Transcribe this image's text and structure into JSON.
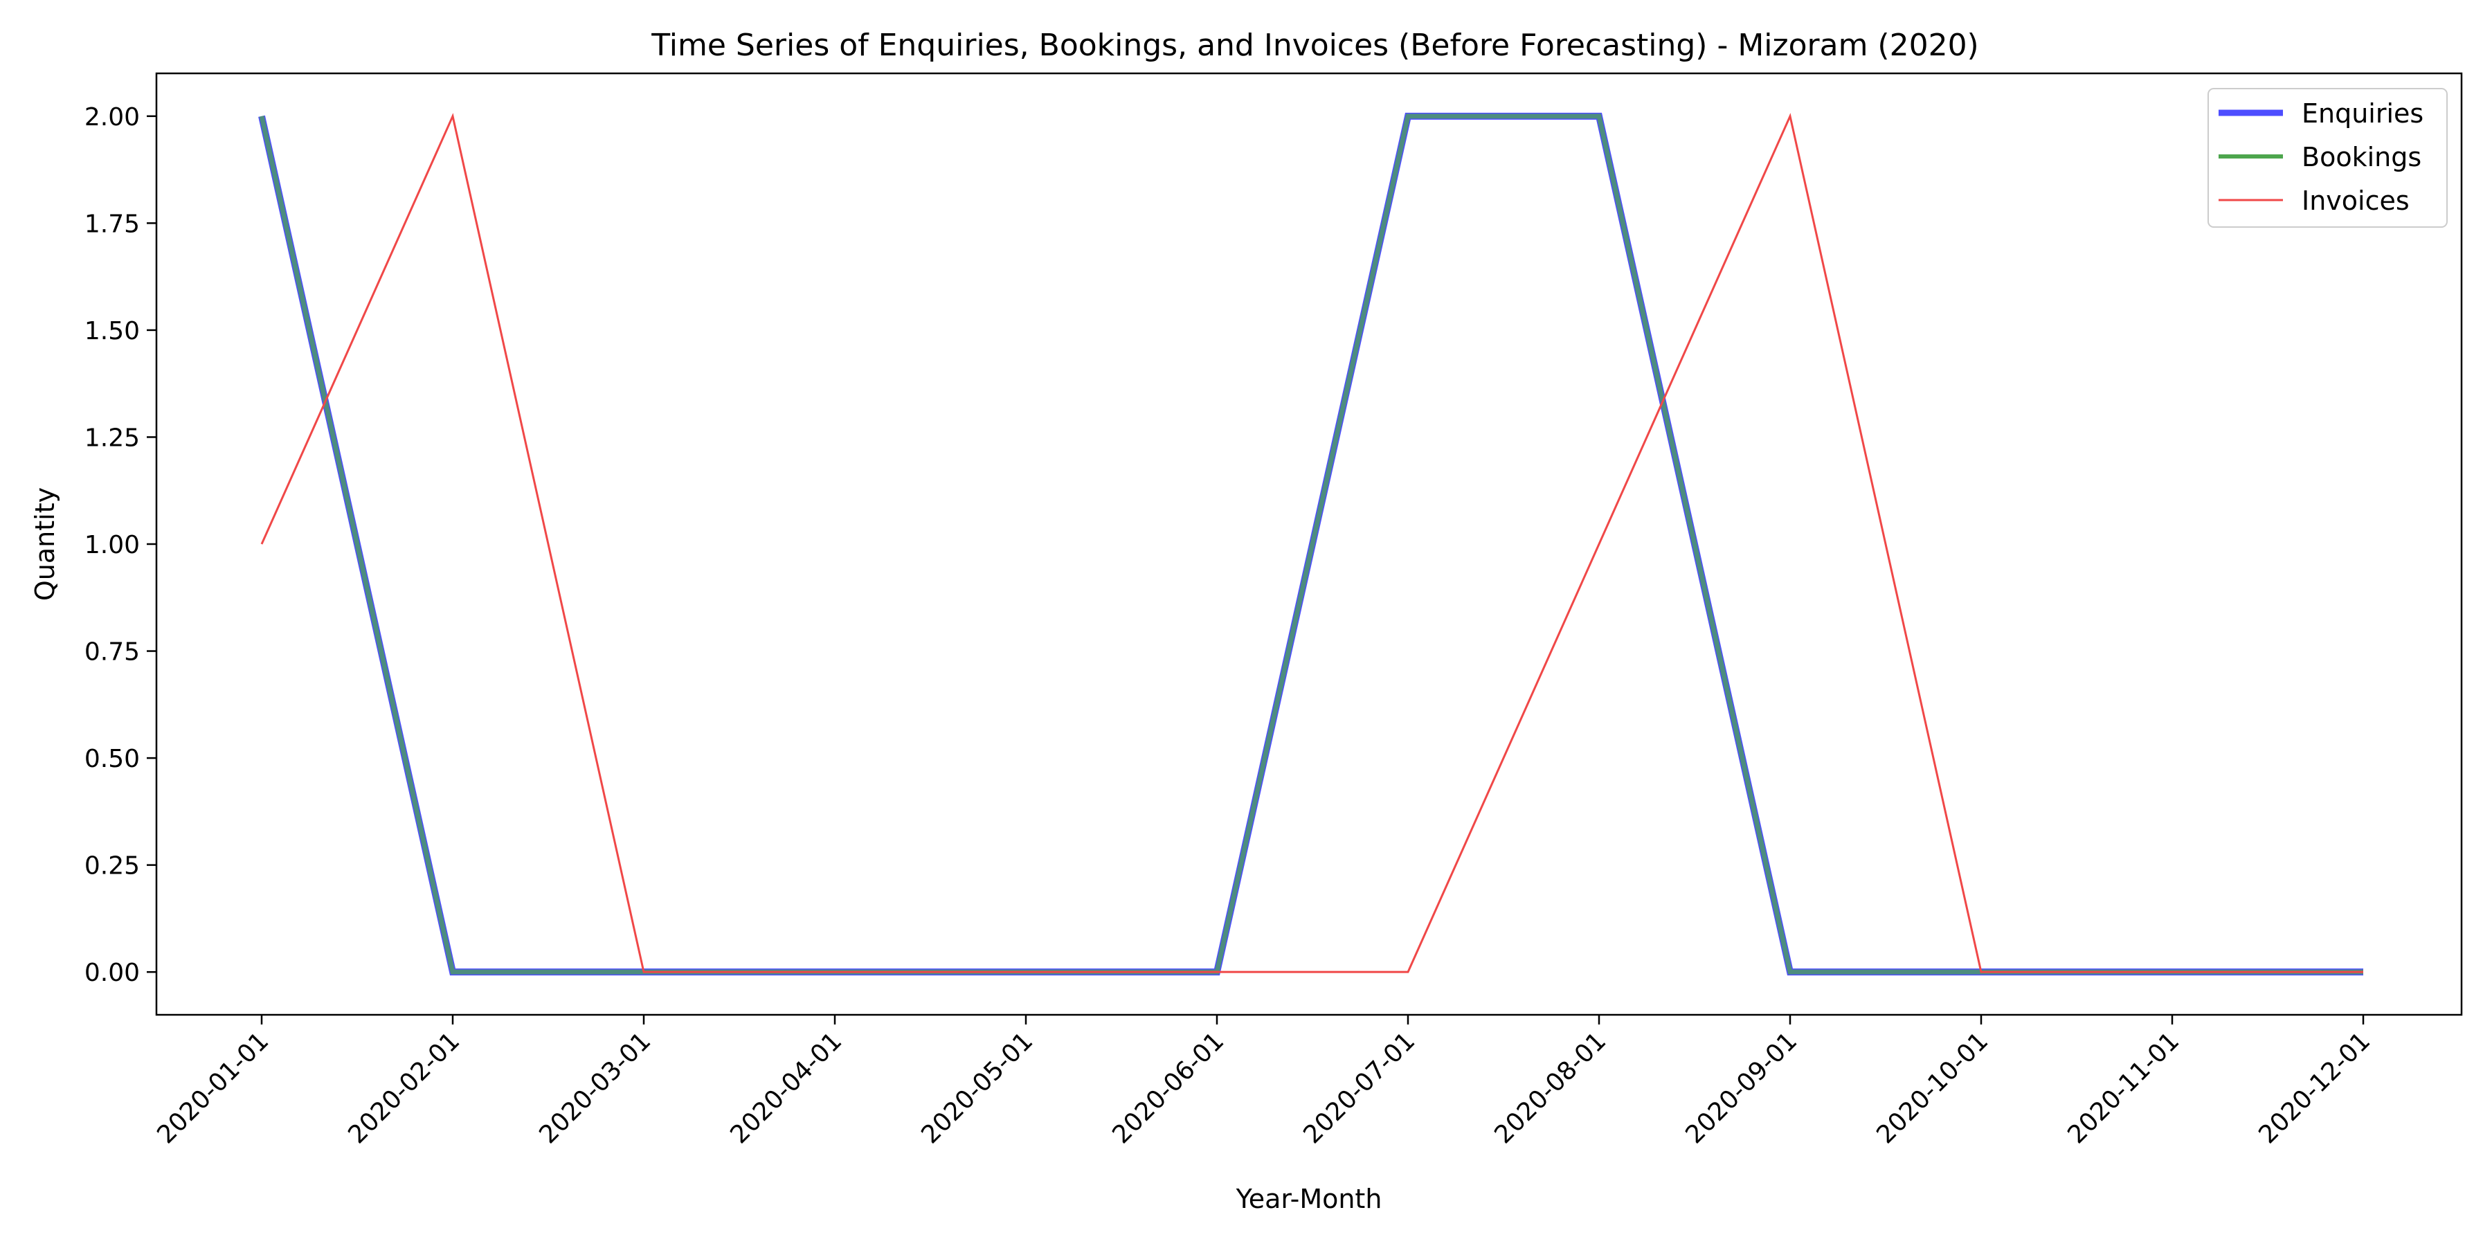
{
  "chart_data": {
    "type": "line",
    "title": "Time Series of Enquiries, Bookings, and Invoices (Before Forecasting) - Mizoram (2020)",
    "xlabel": "Year-Month",
    "ylabel": "Quantity",
    "categories": [
      "2020-01-01",
      "2020-02-01",
      "2020-03-01",
      "2020-04-01",
      "2020-05-01",
      "2020-06-01",
      "2020-07-01",
      "2020-08-01",
      "2020-09-01",
      "2020-10-01",
      "2020-11-01",
      "2020-12-01"
    ],
    "ylim": [
      -0.1,
      2.1
    ],
    "yticks": [
      "0.00",
      "0.25",
      "0.50",
      "0.75",
      "1.00",
      "1.25",
      "1.50",
      "1.75",
      "2.00"
    ],
    "grid": false,
    "legend_position": "top-right",
    "series": [
      {
        "name": "Enquiries",
        "color": "#4d4dff",
        "values": [
          2,
          0,
          0,
          0,
          0,
          0,
          2,
          2,
          0,
          0,
          0,
          0
        ]
      },
      {
        "name": "Bookings",
        "color": "#4da64d",
        "values": [
          2,
          0,
          0,
          0,
          0,
          0,
          2,
          2,
          0,
          0,
          0,
          0
        ]
      },
      {
        "name": "Invoices",
        "color": "#f04848",
        "values": [
          1,
          2,
          0,
          0,
          0,
          0,
          0,
          1,
          2,
          0,
          0,
          0
        ]
      }
    ]
  }
}
